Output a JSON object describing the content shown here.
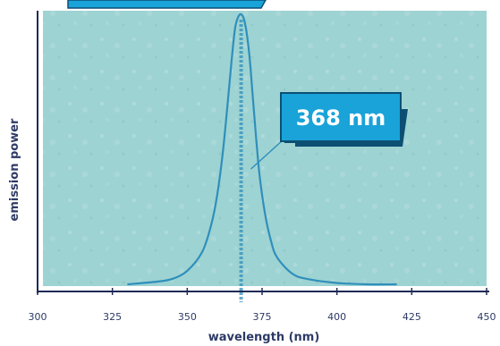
{
  "chart_data": {
    "type": "line",
    "xlabel": "wavelength (nm)",
    "ylabel": "emission power",
    "xlim": [
      300,
      450
    ],
    "ylim": [
      0,
      1
    ],
    "x_ticks": [
      300,
      325,
      350,
      375,
      400,
      425,
      450
    ],
    "grid": false,
    "series": [
      {
        "x": [
          330,
          340,
          345,
          350,
          355,
          358,
          360,
          362,
          364,
          365,
          366,
          367,
          368,
          369,
          370,
          371,
          372,
          374,
          376,
          378,
          380,
          385,
          390,
          400,
          410,
          420
        ],
        "values": [
          0.0,
          0.01,
          0.02,
          0.05,
          0.12,
          0.22,
          0.33,
          0.5,
          0.73,
          0.85,
          0.95,
          0.99,
          1.0,
          0.98,
          0.92,
          0.82,
          0.68,
          0.42,
          0.26,
          0.16,
          0.1,
          0.04,
          0.02,
          0.005,
          0.0,
          0.0
        ]
      }
    ],
    "peak": {
      "x": 368,
      "label": "368 nm"
    }
  },
  "colors": {
    "plot_background": "#9ed3d3",
    "curve": "#2f8fbb",
    "axis": "#1f2a55",
    "text": "#2d3a66",
    "callout": "#1aa3d8",
    "callout_shadow": "#0b4f73"
  }
}
